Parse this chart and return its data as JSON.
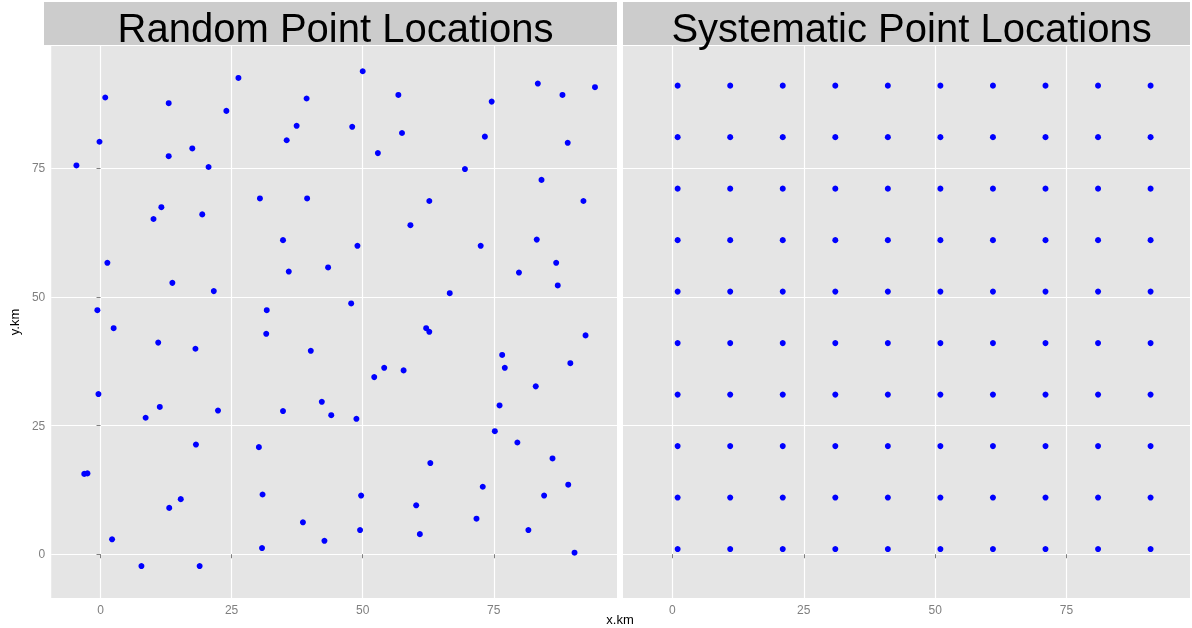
{
  "chart_data": [
    {
      "type": "scatter",
      "title": "Random Point Locations",
      "xlabel": "x.km",
      "ylabel": "y.km",
      "color": "#0000ff",
      "marker": "circle",
      "grid": true,
      "xlim": [
        -9.4,
        98.5
      ],
      "ylim": [
        -8.5,
        98.7
      ],
      "xticks": [
        0,
        25,
        50,
        75
      ],
      "yticks": [
        0,
        25,
        50,
        75
      ],
      "x": [
        -4.6,
        0.9,
        -0.2,
        13.0,
        13.0,
        24.0,
        26.3,
        17.5,
        20.6,
        39.3,
        37.4,
        35.5,
        30.4,
        39.4,
        11.6,
        10.1,
        19.4,
        34.8,
        43.4,
        35.9,
        1.3,
        13.7,
        21.6,
        -0.6,
        31.7,
        2.5,
        50.0,
        56.8,
        74.6,
        83.4,
        88.1,
        94.3,
        48.0,
        57.5,
        52.9,
        73.3,
        89.1,
        69.5,
        84.1,
        92.1,
        62.7,
        59.1,
        49.0,
        72.5,
        83.2,
        86.9,
        79.8,
        87.2,
        66.6,
        47.8,
        62.1,
        62.7,
        11.0,
        18.1,
        31.6,
        40.1,
        -0.4,
        11.3,
        8.6,
        22.4,
        34.8,
        42.2,
        44.0,
        18.2,
        30.2,
        -3.1,
        -2.5,
        15.3,
        13.1,
        30.9,
        38.6,
        42.7,
        30.8,
        2.2,
        7.8,
        18.9,
        48.8,
        52.2,
        54.1,
        57.8,
        76.6,
        77.1,
        76.1,
        83.0,
        89.6,
        92.5,
        75.2,
        79.5,
        86.2,
        62.9,
        49.7,
        72.9,
        84.6,
        89.2,
        60.2,
        71.7,
        49.5,
        60.9,
        81.6,
        90.4
      ],
      "values": [
        75.5,
        88.7,
        80.1,
        87.6,
        77.3,
        86.1,
        92.5,
        78.8,
        75.2,
        88.5,
        83.2,
        80.4,
        69.1,
        69.1,
        67.4,
        65.1,
        66.0,
        61.0,
        55.7,
        54.9,
        56.6,
        52.7,
        51.1,
        47.4,
        47.4,
        43.9,
        93.8,
        89.2,
        87.9,
        91.4,
        89.2,
        90.7,
        83.0,
        81.8,
        77.9,
        81.1,
        79.9,
        74.8,
        72.7,
        68.6,
        68.6,
        63.9,
        59.9,
        59.9,
        61.1,
        56.6,
        54.7,
        52.2,
        50.7,
        48.7,
        43.9,
        43.2,
        41.1,
        39.9,
        42.8,
        39.5,
        31.1,
        28.6,
        26.5,
        27.9,
        27.8,
        29.6,
        27.0,
        21.3,
        20.8,
        15.6,
        15.7,
        10.7,
        9.0,
        11.6,
        6.2,
        2.6,
        1.2,
        2.9,
        -2.3,
        -2.3,
        26.3,
        34.4,
        36.2,
        35.7,
        38.7,
        36.2,
        28.9,
        32.6,
        37.1,
        42.5,
        23.9,
        21.7,
        18.6,
        17.7,
        11.4,
        13.1,
        11.4,
        13.5,
        9.5,
        6.9,
        4.7,
        3.9,
        4.7,
        0.3
      ]
    },
    {
      "type": "scatter",
      "title": "Systematic Point Locations",
      "color": "#0000ff",
      "marker": "circle",
      "grid": true,
      "tick_labels": "x",
      "xlim": [
        -9.4,
        98.5
      ],
      "ylim": [
        -8.5,
        98.7
      ],
      "xticks": [
        0,
        25,
        50,
        75
      ],
      "yticks": [
        0,
        25,
        50,
        75
      ],
      "x": [
        1,
        11,
        21,
        31,
        41,
        51,
        61,
        71,
        81,
        91,
        1,
        11,
        21,
        31,
        41,
        51,
        61,
        71,
        81,
        91,
        1,
        11,
        21,
        31,
        41,
        51,
        61,
        71,
        81,
        91,
        1,
        11,
        21,
        31,
        41,
        51,
        61,
        71,
        81,
        91,
        1,
        11,
        21,
        31,
        41,
        51,
        61,
        71,
        81,
        91,
        1,
        11,
        21,
        31,
        41,
        51,
        61,
        71,
        81,
        91,
        1,
        11,
        21,
        31,
        41,
        51,
        61,
        71,
        81,
        91,
        1,
        11,
        21,
        31,
        41,
        51,
        61,
        71,
        81,
        91,
        1,
        11,
        21,
        31,
        41,
        51,
        61,
        71,
        81,
        91,
        1,
        11,
        21,
        31,
        41,
        51,
        61,
        71,
        81,
        91
      ],
      "values": [
        91,
        91,
        91,
        91,
        91,
        91,
        91,
        91,
        91,
        91,
        81,
        81,
        81,
        81,
        81,
        81,
        81,
        81,
        81,
        81,
        71,
        71,
        71,
        71,
        71,
        71,
        71,
        71,
        71,
        71,
        61,
        61,
        61,
        61,
        61,
        61,
        61,
        61,
        61,
        61,
        51,
        51,
        51,
        51,
        51,
        51,
        51,
        51,
        51,
        51,
        41,
        41,
        41,
        41,
        41,
        41,
        41,
        41,
        41,
        41,
        31,
        31,
        31,
        31,
        31,
        31,
        31,
        31,
        31,
        31,
        21,
        21,
        21,
        21,
        21,
        21,
        21,
        21,
        21,
        21,
        11,
        11,
        11,
        11,
        11,
        11,
        11,
        11,
        11,
        11,
        1,
        1,
        1,
        1,
        1,
        1,
        1,
        1,
        1,
        1
      ]
    }
  ]
}
